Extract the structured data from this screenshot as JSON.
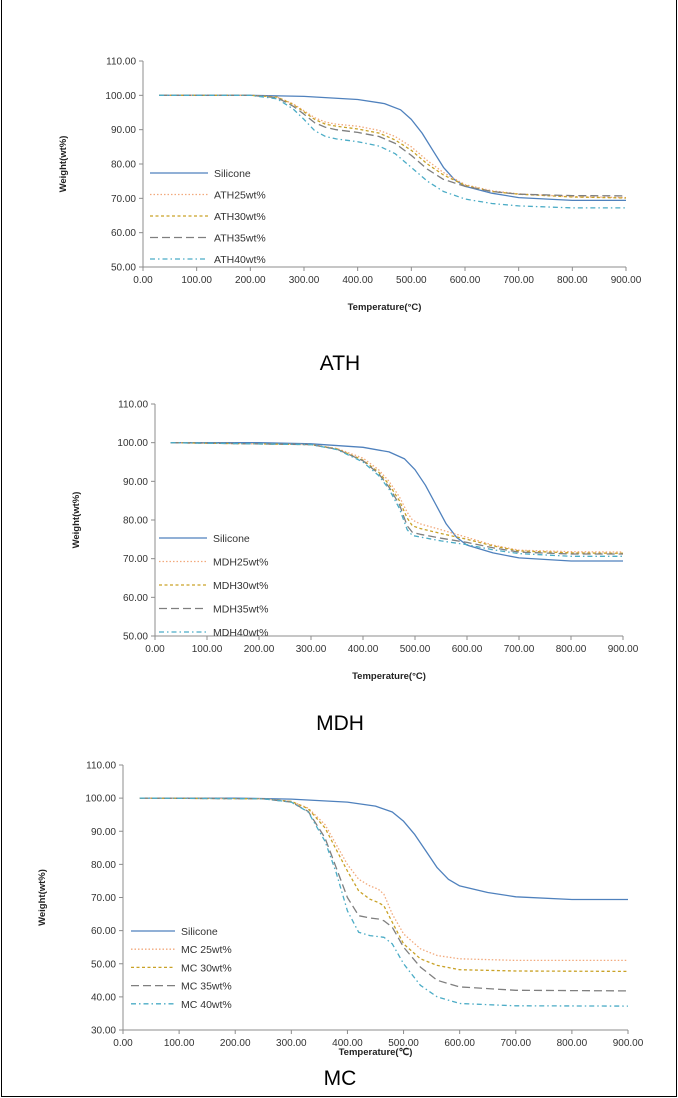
{
  "chart_data": [
    {
      "type": "line",
      "caption": "ATH",
      "xlabel": "Temperature(°C)",
      "ylabel": "Weight(wt%)",
      "xlim": [
        0,
        900
      ],
      "ylim": [
        50,
        110
      ],
      "xticks": [
        "0.00",
        "100.00",
        "200.00",
        "300.00",
        "400.00",
        "500.00",
        "600.00",
        "700.00",
        "800.00",
        "900.00"
      ],
      "yticks": [
        "50.00",
        "60.00",
        "70.00",
        "80.00",
        "90.00",
        "100.00",
        "110.00"
      ],
      "grid": false,
      "legend": "left",
      "series": [
        {
          "name": "Silicone",
          "color": "#4f81bd",
          "dash": "",
          "x": [
            30,
            200,
            300,
            400,
            450,
            480,
            500,
            520,
            540,
            560,
            580,
            600,
            650,
            700,
            800,
            900
          ],
          "y": [
            100,
            100,
            99.7,
            98.8,
            97.6,
            95.8,
            93,
            89,
            84,
            79,
            75.5,
            73.5,
            71.5,
            70.2,
            69.4,
            69.4
          ]
        },
        {
          "name": "ATH25wt%",
          "color": "#f2a97c",
          "dash": "1.5,2",
          "x": [
            30,
            200,
            250,
            280,
            300,
            320,
            340,
            360,
            400,
            440,
            470,
            500,
            530,
            560,
            600,
            650,
            700,
            800,
            900
          ],
          "y": [
            100,
            100,
            99.5,
            97.5,
            95.5,
            93.5,
            92.2,
            91.6,
            91,
            89.8,
            88,
            85,
            81,
            77.5,
            74,
            72.2,
            71.3,
            70.5,
            70.2
          ]
        },
        {
          "name": "ATH30wt%",
          "color": "#c9a227",
          "dash": "3,2.5",
          "x": [
            30,
            200,
            250,
            280,
            300,
            320,
            340,
            360,
            400,
            440,
            470,
            500,
            530,
            560,
            600,
            650,
            700,
            800,
            900
          ],
          "y": [
            100,
            100,
            99.5,
            97.3,
            95.2,
            93,
            91.6,
            91,
            90.2,
            89,
            87,
            84,
            80,
            76.8,
            73.8,
            72,
            71.2,
            70.4,
            70.1
          ]
        },
        {
          "name": "ATH35wt%",
          "color": "#7f7f7f",
          "dash": "8,4",
          "x": [
            30,
            200,
            250,
            280,
            300,
            320,
            340,
            360,
            400,
            440,
            470,
            500,
            530,
            560,
            600,
            650,
            700,
            800,
            900
          ],
          "y": [
            100,
            100,
            99.3,
            96.8,
            94.5,
            92,
            90.7,
            90,
            89.2,
            88,
            86,
            82.5,
            78.5,
            75.5,
            73.5,
            72,
            71.2,
            70.8,
            70.7
          ]
        },
        {
          "name": "ATH40wt%",
          "color": "#4bacc6",
          "dash": "5,3,1.5,3",
          "x": [
            30,
            200,
            250,
            280,
            300,
            320,
            340,
            360,
            400,
            440,
            470,
            500,
            530,
            560,
            600,
            650,
            700,
            800,
            900
          ],
          "y": [
            100,
            100,
            99,
            96,
            93,
            89.7,
            88,
            87.3,
            86.5,
            85.2,
            83,
            79,
            75,
            72,
            69.8,
            68.5,
            67.8,
            67.2,
            67.2
          ]
        }
      ]
    },
    {
      "type": "line",
      "caption": "MDH",
      "xlabel": "Temperature(°C)",
      "ylabel": "Weight(wt%)",
      "xlim": [
        0,
        900
      ],
      "ylim": [
        50,
        110
      ],
      "xticks": [
        "0.00",
        "100.00",
        "200.00",
        "300.00",
        "400.00",
        "500.00",
        "600.00",
        "700.00",
        "800.00",
        "900.00"
      ],
      "yticks": [
        "50.00",
        "60.00",
        "70.00",
        "80.00",
        "90.00",
        "100.00",
        "110.00"
      ],
      "grid": false,
      "legend": "left",
      "series": [
        {
          "name": "Silicone",
          "color": "#4f81bd",
          "dash": "",
          "x": [
            30,
            200,
            300,
            400,
            450,
            480,
            500,
            520,
            540,
            560,
            580,
            600,
            650,
            700,
            800,
            900
          ],
          "y": [
            100,
            100,
            99.7,
            98.8,
            97.6,
            95.8,
            93,
            89,
            84,
            79,
            75.5,
            73.5,
            71.5,
            70.2,
            69.4,
            69.4
          ]
        },
        {
          "name": "MDH25wt%",
          "color": "#f2a97c",
          "dash": "1.5,2",
          "x": [
            30,
            300,
            350,
            400,
            430,
            450,
            470,
            485,
            495,
            510,
            550,
            600,
            650,
            700,
            800,
            900
          ],
          "y": [
            100,
            99.5,
            98.5,
            96,
            93,
            90,
            86,
            82,
            80,
            79,
            77.5,
            75.5,
            73.5,
            72.2,
            71.8,
            71.7
          ]
        },
        {
          "name": "MDH30wt%",
          "color": "#c9a227",
          "dash": "3,2.5",
          "x": [
            30,
            300,
            350,
            400,
            430,
            450,
            470,
            485,
            495,
            510,
            550,
            600,
            650,
            700,
            800,
            900
          ],
          "y": [
            100,
            99.5,
            98.4,
            95.5,
            92.4,
            89.2,
            85,
            80.5,
            78.5,
            77.8,
            76.5,
            75,
            73.3,
            72,
            71.5,
            71.4
          ]
        },
        {
          "name": "MDH35wt%",
          "color": "#7f7f7f",
          "dash": "8,4",
          "x": [
            30,
            300,
            350,
            400,
            430,
            450,
            470,
            485,
            495,
            510,
            550,
            600,
            650,
            700,
            800,
            900
          ],
          "y": [
            100,
            99.5,
            98.3,
            95.3,
            92,
            88.5,
            84,
            78.5,
            76.8,
            76.3,
            75.3,
            74.2,
            72.8,
            71.7,
            71.2,
            71.2
          ]
        },
        {
          "name": "MDH40wt%",
          "color": "#4bacc6",
          "dash": "5,3,1.5,3",
          "x": [
            30,
            300,
            350,
            400,
            430,
            450,
            470,
            485,
            495,
            510,
            550,
            600,
            650,
            700,
            800,
            900
          ],
          "y": [
            100,
            99.5,
            98.2,
            95,
            91.5,
            88,
            83,
            77.5,
            76,
            75.6,
            74.6,
            73.6,
            72.3,
            71.3,
            70.6,
            70.6
          ]
        }
      ]
    },
    {
      "type": "line",
      "caption": "MC",
      "xlabel": "Temperature(℃)",
      "ylabel": "Weight(wt%)",
      "xlim": [
        0,
        900
      ],
      "ylim": [
        30,
        110
      ],
      "xticks": [
        "0.00",
        "100.00",
        "200.00",
        "300.00",
        "400.00",
        "500.00",
        "600.00",
        "700.00",
        "800.00",
        "900.00"
      ],
      "yticks": [
        "30.00",
        "40.00",
        "50.00",
        "60.00",
        "70.00",
        "80.00",
        "90.00",
        "100.00",
        "110.00"
      ],
      "grid": false,
      "legend": "left",
      "series": [
        {
          "name": "Silicone",
          "color": "#4f81bd",
          "dash": "",
          "x": [
            30,
            200,
            300,
            400,
            450,
            480,
            500,
            520,
            540,
            560,
            580,
            600,
            650,
            700,
            800,
            900
          ],
          "y": [
            100,
            100,
            99.7,
            98.8,
            97.6,
            95.8,
            93,
            89,
            84,
            79,
            75.5,
            73.5,
            71.5,
            70.2,
            69.4,
            69.4
          ]
        },
        {
          "name": "MC 25wt%",
          "color": "#f2a97c",
          "dash": "1.5,2",
          "x": [
            30,
            250,
            300,
            330,
            360,
            380,
            400,
            420,
            440,
            455,
            465,
            480,
            500,
            530,
            560,
            600,
            700,
            900
          ],
          "y": [
            100,
            99.8,
            99,
            97,
            92,
            86,
            80,
            75.5,
            73.5,
            72.5,
            71,
            65,
            59,
            54.5,
            52.5,
            51.5,
            51,
            51
          ]
        },
        {
          "name": "MC 30wt%",
          "color": "#c9a227",
          "dash": "3,2.5",
          "x": [
            30,
            250,
            300,
            330,
            360,
            380,
            400,
            420,
            440,
            455,
            465,
            480,
            500,
            530,
            560,
            600,
            700,
            900
          ],
          "y": [
            100,
            99.8,
            99,
            96.8,
            91,
            84.5,
            78,
            72,
            69.5,
            68.5,
            67.5,
            62.5,
            56,
            51.5,
            49.5,
            48.2,
            47.8,
            47.7
          ]
        },
        {
          "name": "MC 35wt%",
          "color": "#7f7f7f",
          "dash": "8,4",
          "x": [
            30,
            250,
            300,
            330,
            360,
            380,
            400,
            420,
            440,
            455,
            465,
            480,
            500,
            530,
            560,
            600,
            700,
            900
          ],
          "y": [
            100,
            99.8,
            98.8,
            96,
            88,
            79,
            70,
            64.5,
            63.8,
            63.5,
            63,
            61,
            55,
            49,
            45,
            43,
            42,
            41.8
          ]
        },
        {
          "name": "MC 40wt%",
          "color": "#4bacc6",
          "dash": "5,3,1.5,3",
          "x": [
            30,
            250,
            300,
            330,
            360,
            380,
            400,
            420,
            440,
            455,
            465,
            480,
            500,
            530,
            560,
            600,
            700,
            900
          ],
          "y": [
            100,
            99.8,
            98.8,
            95.8,
            87,
            77.5,
            66,
            59.5,
            58.5,
            58.2,
            58,
            56,
            50,
            43.5,
            40,
            38,
            37.3,
            37.2
          ]
        }
      ]
    }
  ]
}
